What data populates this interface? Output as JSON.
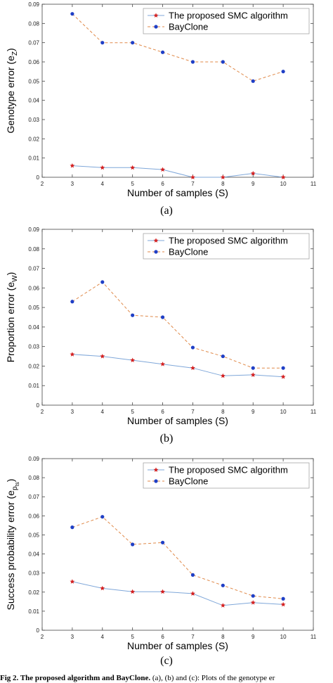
{
  "chart_data": [
    {
      "type": "line",
      "panel_label": "(a)",
      "xlabel": "Number of samples (S)",
      "ylabel": "Genotype error (e",
      "ylabel_sub": "Z",
      "ylabel_sub2": "",
      "xlim": [
        2,
        11
      ],
      "ylim": [
        0,
        0.09
      ],
      "xticks": [
        2,
        3,
        4,
        5,
        6,
        7,
        8,
        9,
        10,
        11
      ],
      "yticks": [
        0,
        0.01,
        0.02,
        0.03,
        0.04,
        0.05,
        0.06,
        0.07,
        0.08,
        0.09
      ],
      "ytick_labels": [
        "0",
        "0.01",
        "0.02",
        "0.03",
        "0.04",
        "0.05",
        "0.06",
        "0.07",
        "0.08",
        "0.09"
      ],
      "legend_position": "top-right",
      "x": [
        3,
        4,
        5,
        6,
        7,
        8,
        9,
        10
      ],
      "series": [
        {
          "name": "The proposed SMC algorithm",
          "values": [
            0.006,
            0.005,
            0.005,
            0.004,
            0.0,
            0.0,
            0.002,
            0.0
          ],
          "marker": "star",
          "marker_color": "#d42020",
          "line_color": "#7fa7d9",
          "dash": "none"
        },
        {
          "name": "BayClone",
          "values": [
            0.085,
            0.07,
            0.07,
            0.065,
            0.06,
            0.06,
            0.05,
            0.055
          ],
          "marker": "dot",
          "marker_color": "#1f3fc6",
          "line_color": "#e08a4a",
          "dash": "4,3"
        }
      ]
    },
    {
      "type": "line",
      "panel_label": "(b)",
      "xlabel": "Number of samples (S)",
      "ylabel": "Proportion error (e",
      "ylabel_sub": "W",
      "ylabel_sub2": "",
      "xlim": [
        2,
        11
      ],
      "ylim": [
        0,
        0.09
      ],
      "xticks": [
        2,
        3,
        4,
        5,
        6,
        7,
        8,
        9,
        10,
        11
      ],
      "yticks": [
        0,
        0.01,
        0.02,
        0.03,
        0.04,
        0.05,
        0.06,
        0.07,
        0.08,
        0.09
      ],
      "ytick_labels": [
        "0",
        "0.01",
        "0.02",
        "0.03",
        "0.04",
        "0.05",
        "0.06",
        "0.07",
        "0.08",
        "0.09"
      ],
      "legend_position": "top-right",
      "x": [
        3,
        4,
        5,
        6,
        7,
        8,
        9,
        10
      ],
      "series": [
        {
          "name": "The proposed SMC algorithm",
          "values": [
            0.026,
            0.025,
            0.023,
            0.021,
            0.019,
            0.015,
            0.0155,
            0.0145
          ],
          "marker": "star",
          "marker_color": "#d42020",
          "line_color": "#7fa7d9",
          "dash": "none"
        },
        {
          "name": "BayClone",
          "values": [
            0.053,
            0.063,
            0.046,
            0.045,
            0.0295,
            0.025,
            0.019,
            0.019
          ],
          "marker": "dot",
          "marker_color": "#1f3fc6",
          "line_color": "#e08a4a",
          "dash": "4,3"
        }
      ]
    },
    {
      "type": "line",
      "panel_label": "(c)",
      "xlabel": "Number of samples (S)",
      "ylabel": "Success probability error (e",
      "ylabel_sub": "p",
      "ylabel_sub2": "ts",
      "xlim": [
        2,
        11
      ],
      "ylim": [
        0,
        0.09
      ],
      "xticks": [
        2,
        3,
        4,
        5,
        6,
        7,
        8,
        9,
        10,
        11
      ],
      "yticks": [
        0,
        0.01,
        0.02,
        0.03,
        0.04,
        0.05,
        0.06,
        0.07,
        0.08,
        0.09
      ],
      "ytick_labels": [
        "0",
        "0.01",
        "0.02",
        "0.03",
        "0.04",
        "0.05",
        "0.06",
        "0.07",
        "0.08",
        "0.09"
      ],
      "legend_position": "top-right",
      "x": [
        3,
        4,
        5,
        6,
        7,
        8,
        9,
        10
      ],
      "series": [
        {
          "name": "The proposed SMC algorithm",
          "values": [
            0.0255,
            0.022,
            0.0202,
            0.0202,
            0.0192,
            0.013,
            0.0145,
            0.0135
          ],
          "marker": "star",
          "marker_color": "#d42020",
          "line_color": "#7fa7d9",
          "dash": "none"
        },
        {
          "name": "BayClone",
          "values": [
            0.054,
            0.0595,
            0.045,
            0.046,
            0.029,
            0.0235,
            0.018,
            0.0165
          ],
          "marker": "dot",
          "marker_color": "#1f3fc6",
          "line_color": "#e08a4a",
          "dash": "4,3"
        }
      ]
    }
  ],
  "figure_caption": {
    "bold": "Fig 2. The proposed algorithm and BayClone.",
    "rest": " (a), (b) and (c): Plots of the genotype er"
  }
}
